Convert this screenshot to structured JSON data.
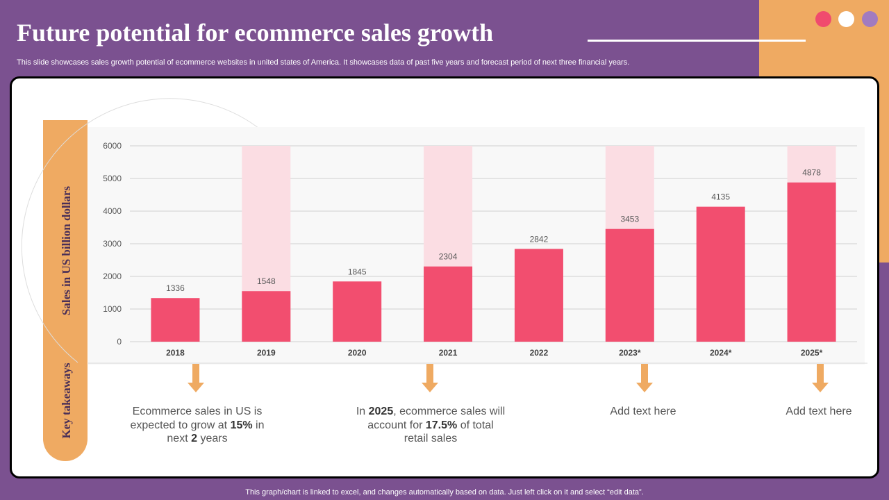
{
  "header": {
    "title": "Future potential for ecommerce sales growth",
    "subtitle": "This slide showcases sales growth potential of ecommerce websites in united states of America. It showcases data of past five years and forecast period of next three financial years."
  },
  "side_labels": {
    "axis": "Sales in US billion dollars",
    "takeaways": "Key takeaways"
  },
  "chart_data": {
    "type": "bar",
    "categories": [
      "2018",
      "2019",
      "2020",
      "2021",
      "2022",
      "2023*",
      "2024*",
      "2025*"
    ],
    "values": [
      1336,
      1548,
      1845,
      2304,
      2842,
      3453,
      4135,
      4878
    ],
    "highlighted": [
      false,
      true,
      false,
      true,
      false,
      true,
      false,
      true
    ],
    "ylabel": "Sales in US billion dollars",
    "ylim": [
      0,
      6000
    ],
    "yticks": [
      0,
      1000,
      2000,
      3000,
      4000,
      5000,
      6000
    ],
    "grid": true,
    "bar_color": "#f24e6f",
    "highlight_color": "#fbdde3"
  },
  "takeaways": [
    {
      "parts": [
        {
          "t": "Ecommerce sales in US is expected to grow at "
        },
        {
          "t": "15%",
          "b": true
        },
        {
          "t": " in next "
        },
        {
          "t": "2",
          "b": true
        },
        {
          "t": " years"
        }
      ]
    },
    {
      "parts": [
        {
          "t": "In "
        },
        {
          "t": "2025",
          "b": true
        },
        {
          "t": ", ecommerce sales will account for "
        },
        {
          "t": "17.5%",
          "b": true
        },
        {
          "t": " of total retail sales"
        }
      ]
    },
    {
      "parts": [
        {
          "t": "Add text here"
        }
      ]
    },
    {
      "parts": [
        {
          "t": "Add text here"
        }
      ]
    }
  ],
  "footer": "This graph/chart is linked to excel, and changes automatically based on data. Just left click on it and select “edit data”.",
  "colors": {
    "background": "#7b5190",
    "accent": "#efaa62",
    "dot_pink": "#f04b6e",
    "dot_white": "#ffffff",
    "dot_lavender": "#a27bc0"
  }
}
